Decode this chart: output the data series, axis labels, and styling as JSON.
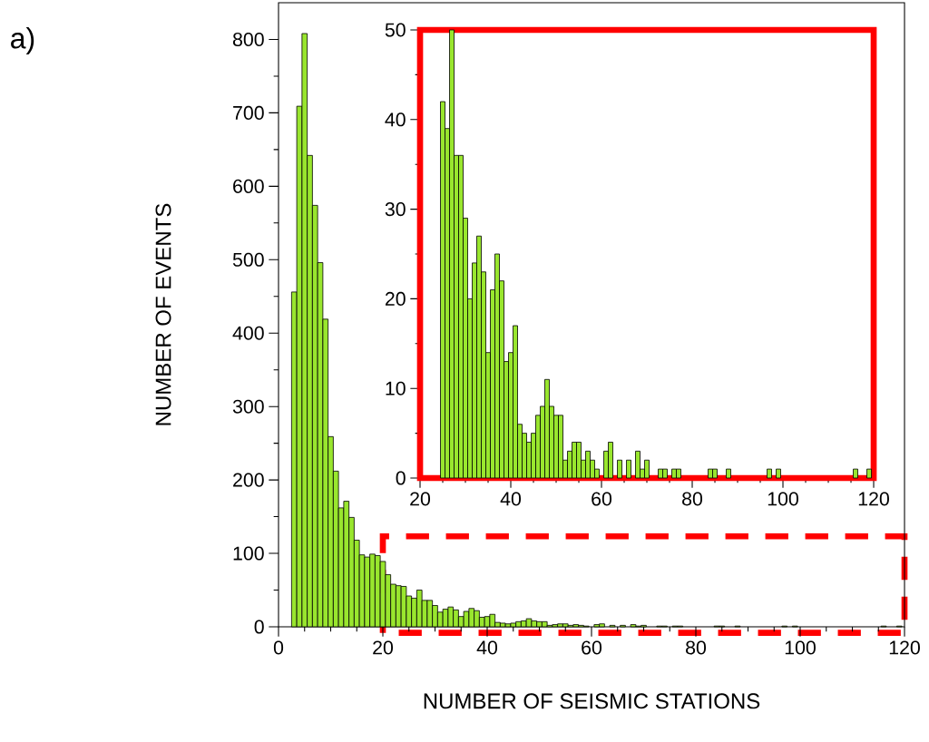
{
  "chart_data": [
    {
      "type": "histogram",
      "xlabel": "NUMBER OF SEISMIC STATIONS",
      "ylabel": "NUMBER OF EVENTS",
      "color": "#99e62e",
      "bins": [
        2.5,
        3.5,
        4.5,
        5.5,
        6.5,
        7.5,
        8.5,
        9.5,
        10.5,
        11.5,
        12.5,
        13.5,
        14.5,
        15.5,
        16.5,
        17.5,
        18.5,
        19.5,
        20.5,
        21.5,
        22.5,
        23.5,
        24.5,
        25.5,
        26.5,
        27.5,
        28.5,
        29.5,
        30.5,
        31.5,
        32.5,
        33.5,
        34.5,
        35.5,
        36.5,
        37.5,
        38.5,
        39.5,
        40.5,
        41.5,
        42.5,
        43.5,
        44.5,
        45.5,
        46.5,
        47.5,
        48.5,
        49.5,
        50.5,
        51.5,
        52.5,
        53.5,
        54.5,
        55.5,
        56.5,
        57.5,
        58.5,
        59.5,
        60.5,
        61.5,
        62.5,
        63.5,
        64.5,
        65.5,
        66.5,
        67.5,
        68.5,
        69.5,
        70.5,
        71.5,
        72.5,
        73.5,
        74.5,
        75.5,
        76.5,
        77.5,
        78.5,
        79.5,
        80.5,
        81.5,
        82.5,
        83.5,
        84.5,
        85.5,
        86.5,
        87.5,
        88.5,
        89.5,
        90.5,
        91.5,
        92.5,
        93.5,
        94.5,
        95.5,
        96.5,
        97.5,
        98.5,
        99.5,
        100.5,
        101.5,
        102.5,
        103.5,
        104.5,
        105.5,
        106.5,
        107.5,
        108.5,
        109.5,
        110.5,
        111.5,
        112.5,
        113.5,
        114.5,
        115.5,
        116.5,
        117.5,
        118.5,
        119.5
      ],
      "values": [
        456,
        709,
        808,
        642,
        574,
        496,
        419,
        259,
        212,
        162,
        171,
        149,
        118,
        98,
        95,
        99,
        97,
        89,
        71,
        58,
        56,
        55,
        42,
        39,
        50,
        36,
        36,
        29,
        20,
        24,
        27,
        23,
        14,
        21,
        25,
        22,
        13,
        14,
        17,
        6,
        5,
        4,
        5,
        7,
        8,
        11,
        8,
        7,
        7,
        2,
        3,
        4,
        4,
        2,
        3,
        2,
        1,
        0,
        3,
        4,
        0,
        2,
        0,
        2,
        0,
        3,
        1,
        2,
        0,
        0,
        1,
        1,
        0,
        1,
        1,
        0,
        0,
        0,
        0,
        0,
        0,
        1,
        1,
        0,
        0,
        1,
        0,
        0,
        0,
        0,
        0,
        0,
        0,
        0,
        1,
        0,
        1,
        0,
        0,
        0,
        0,
        0,
        0,
        0,
        0,
        0,
        0,
        0,
        0,
        0,
        0,
        0,
        0,
        1,
        0,
        0,
        1
      ],
      "xlim": [
        0,
        120
      ],
      "ylim": [
        0,
        850
      ],
      "xticks": [
        0,
        20,
        40,
        60,
        80,
        100,
        120
      ],
      "yticks": [
        0,
        100,
        200,
        300,
        400,
        500,
        600,
        700,
        800
      ],
      "annotations": [
        "a)"
      ]
    },
    {
      "type": "histogram",
      "color": "#99e62e",
      "bins": [
        24.5,
        25.5,
        26.5,
        27.5,
        28.5,
        29.5,
        30.5,
        31.5,
        32.5,
        33.5,
        34.5,
        35.5,
        36.5,
        37.5,
        38.5,
        39.5,
        40.5,
        41.5,
        42.5,
        43.5,
        44.5,
        45.5,
        46.5,
        47.5,
        48.5,
        49.5,
        50.5,
        51.5,
        52.5,
        53.5,
        54.5,
        55.5,
        56.5,
        57.5,
        58.5,
        59.5,
        60.5,
        61.5,
        62.5,
        63.5,
        64.5,
        65.5,
        66.5,
        67.5,
        68.5,
        69.5,
        70.5,
        71.5,
        72.5,
        73.5,
        74.5,
        75.5,
        76.5,
        77.5,
        78.5,
        79.5,
        80.5,
        81.5,
        82.5,
        83.5,
        84.5,
        85.5,
        86.5,
        87.5,
        88.5,
        89.5,
        90.5,
        91.5,
        92.5,
        93.5,
        94.5,
        95.5,
        96.5,
        97.5,
        98.5,
        99.5,
        100.5,
        101.5,
        102.5,
        103.5,
        104.5,
        105.5,
        106.5,
        107.5,
        108.5,
        109.5,
        110.5,
        111.5,
        112.5,
        113.5,
        114.5,
        115.5,
        116.5,
        117.5,
        118.5,
        119.5
      ],
      "values": [
        42,
        39,
        50,
        36,
        36,
        29,
        20,
        24,
        27,
        23,
        14,
        21,
        25,
        22,
        13,
        14,
        17,
        6,
        5,
        4,
        5,
        7,
        8,
        11,
        8,
        7,
        7,
        2,
        3,
        4,
        4,
        2,
        3,
        2,
        1,
        0,
        3,
        4,
        0,
        2,
        0,
        2,
        0,
        3,
        1,
        2,
        0,
        0,
        1,
        1,
        0,
        1,
        1,
        0,
        0,
        0,
        0,
        0,
        0,
        1,
        1,
        0,
        0,
        1,
        0,
        0,
        0,
        0,
        0,
        0,
        0,
        0,
        1,
        0,
        1,
        0,
        0,
        0,
        0,
        0,
        0,
        0,
        0,
        0,
        0,
        0,
        0,
        0,
        0,
        0,
        0,
        1,
        0,
        0,
        1
      ],
      "xlim": [
        20,
        120
      ],
      "ylim": [
        0,
        50
      ],
      "xticks": [
        20,
        40,
        60,
        80,
        100,
        120
      ],
      "yticks": [
        0,
        10,
        20,
        30,
        40,
        50
      ]
    }
  ]
}
